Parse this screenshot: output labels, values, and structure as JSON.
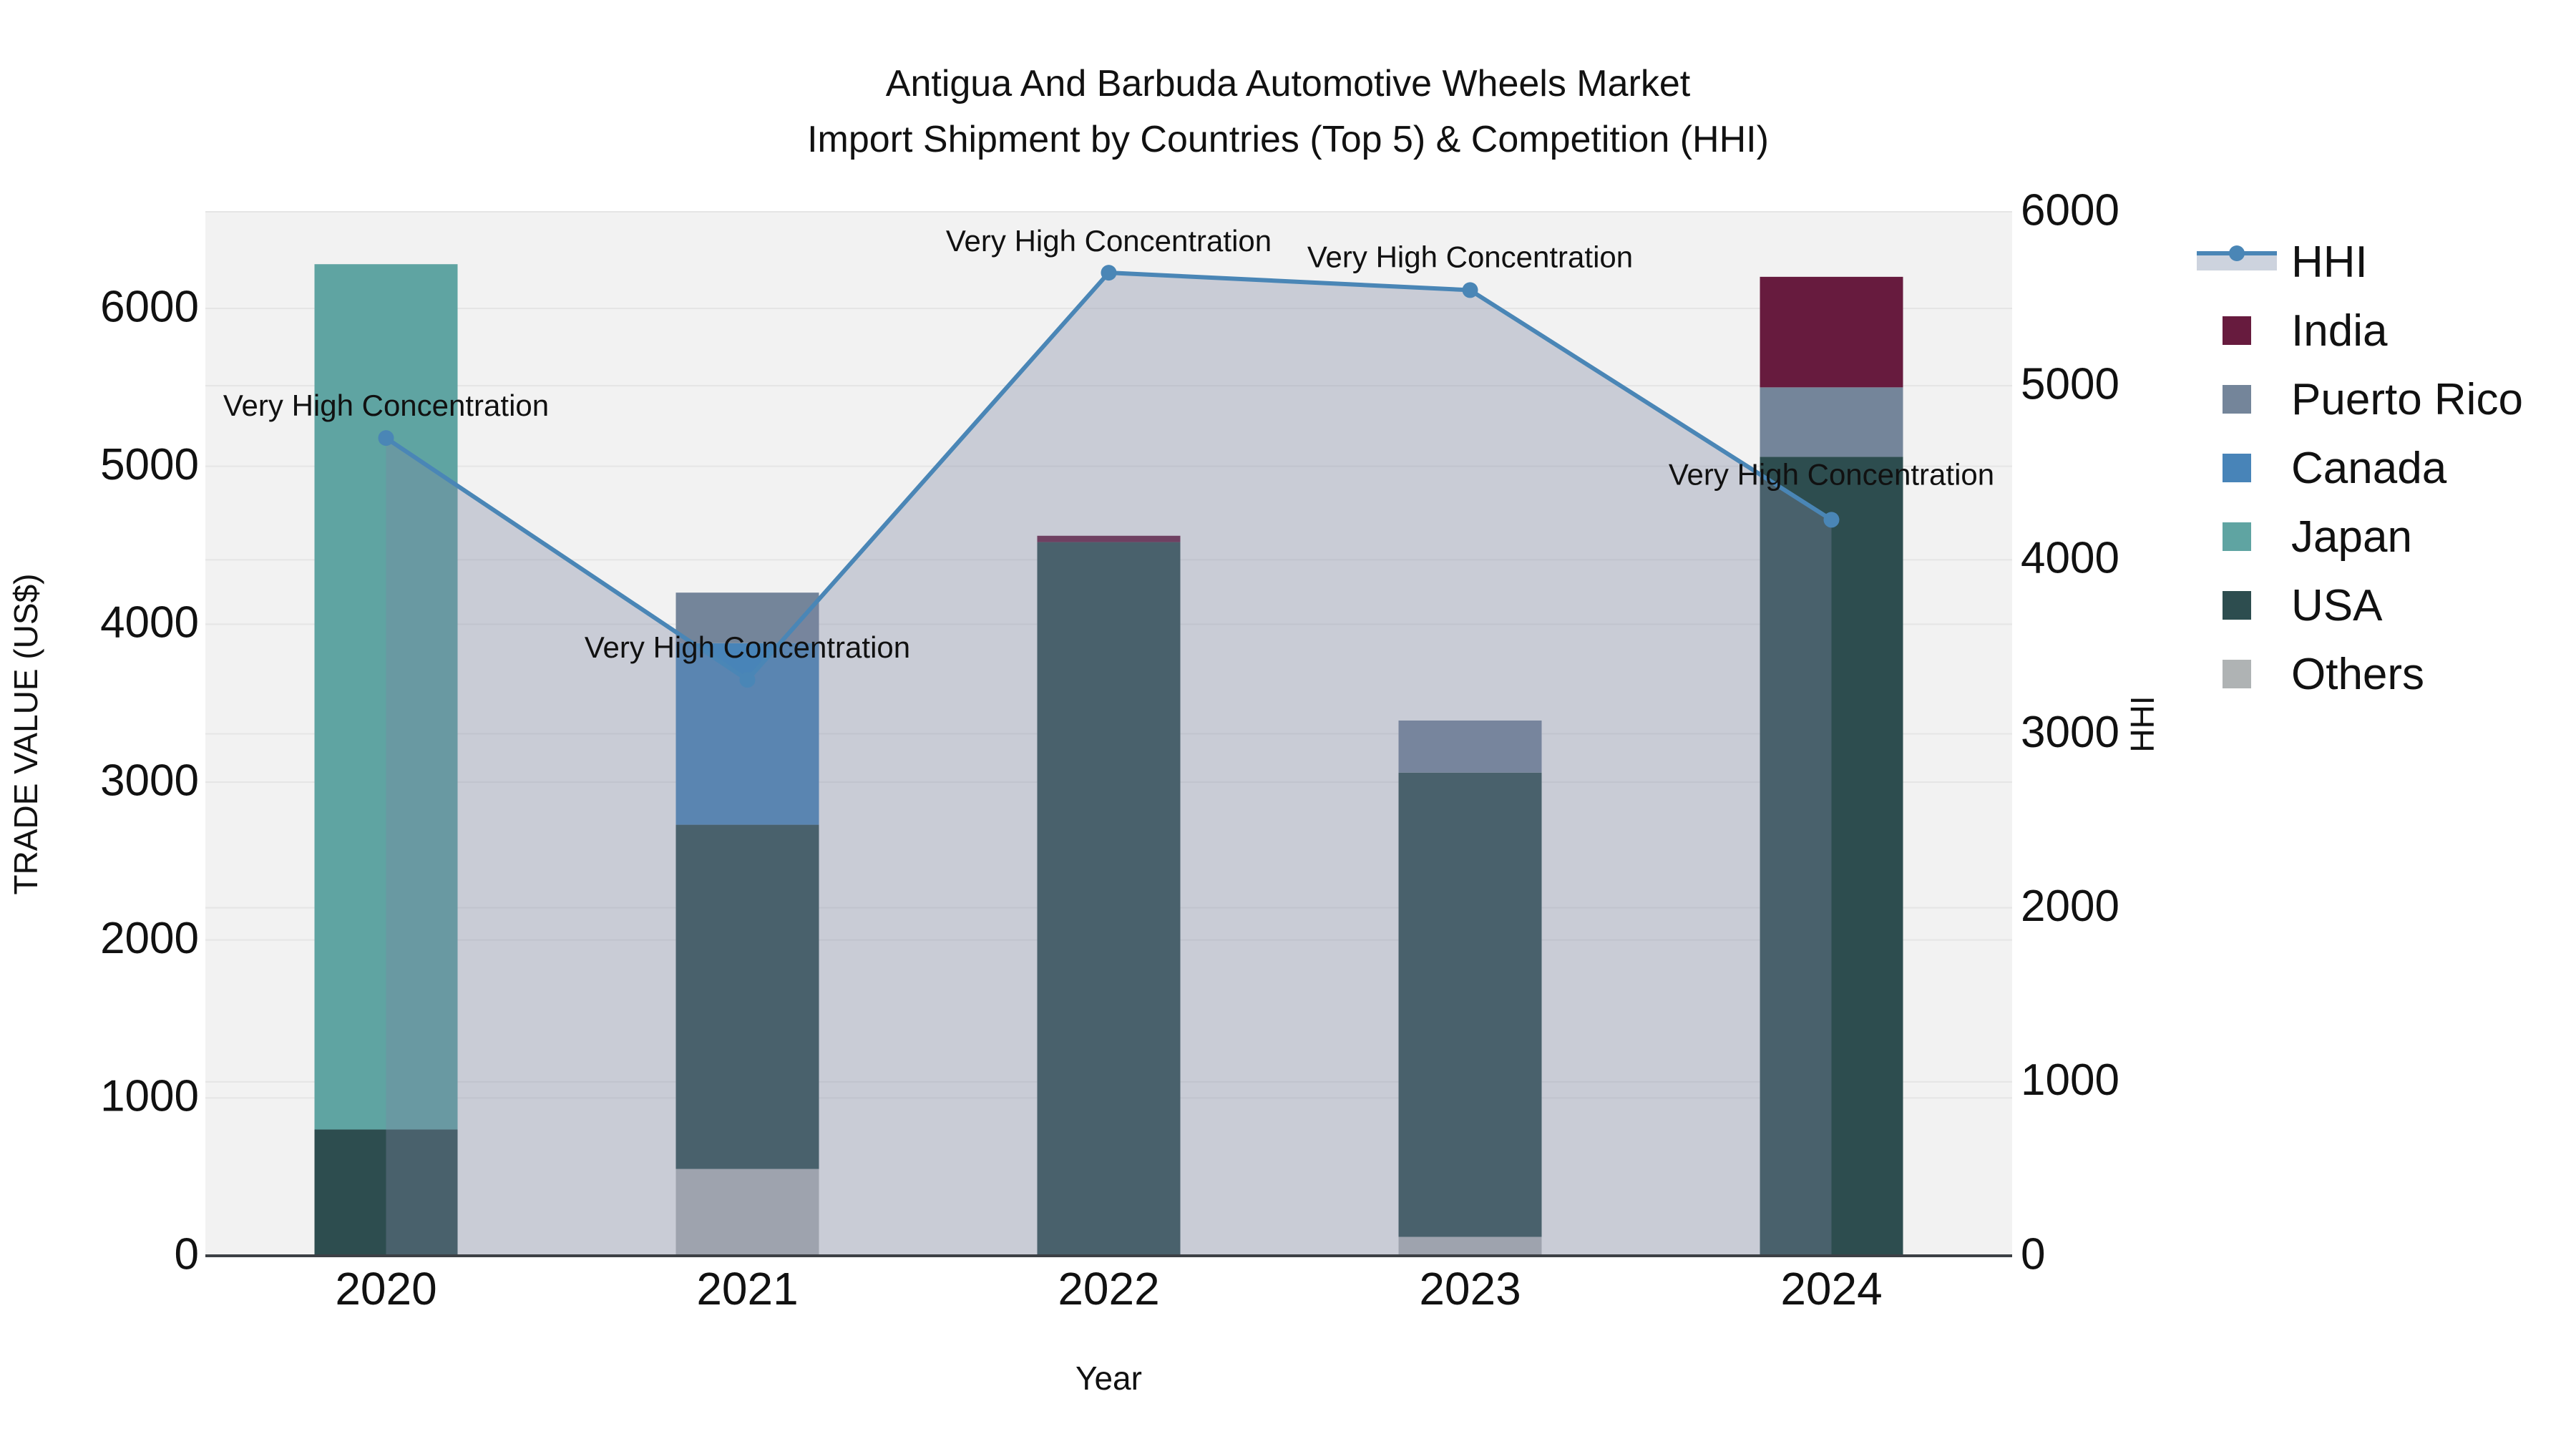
{
  "title": {
    "line1": "Antigua And Barbuda Automotive Wheels Market",
    "line2": "Import Shipment by Countries (Top 5) & Competition (HHI)"
  },
  "chart_data": {
    "type": "bar+line",
    "categories": [
      "2020",
      "2021",
      "2022",
      "2023",
      "2024"
    ],
    "xlabel": "Year",
    "ylabel_left": "TRADE VALUE (US$)",
    "ylabel_right": "HHI",
    "yticks_left": [
      "0",
      "1000",
      "2000",
      "3000",
      "4000",
      "5000",
      "6000"
    ],
    "yticks_right": [
      "0",
      "1000",
      "2000",
      "3000",
      "4000",
      "5000",
      "6000"
    ],
    "ylim_left": [
      0,
      6614
    ],
    "ylim_right": [
      0,
      6000
    ],
    "grid": "on",
    "legend_position": "right",
    "stack_order_bottom_to_top": [
      "Others",
      "USA",
      "Japan",
      "Canada",
      "Puerto Rico",
      "India"
    ],
    "series": [
      {
        "name": "India",
        "color": "#671B3E",
        "values": [
          0,
          0,
          40,
          0,
          700
        ]
      },
      {
        "name": "Puerto Rico",
        "color": "#74859A",
        "values": [
          0,
          320,
          0,
          330,
          440
        ]
      },
      {
        "name": "Canada",
        "color": "#4884B8",
        "values": [
          0,
          1150,
          0,
          0,
          0
        ]
      },
      {
        "name": "Japan",
        "color": "#5FA4A2",
        "values": [
          5480,
          0,
          0,
          0,
          0
        ]
      },
      {
        "name": "USA",
        "color": "#2D4D4F",
        "values": [
          800,
          2180,
          4520,
          2940,
          5060
        ]
      },
      {
        "name": "Others",
        "color": "#AFB3B4",
        "values": [
          0,
          550,
          0,
          120,
          0
        ]
      }
    ],
    "bar_totals": [
      6280,
      4200,
      4560,
      3390,
      6200
    ],
    "hhi": {
      "name": "HHI",
      "line_color": "#4A86B6",
      "area_fill": "rgba(125,136,162,0.35)",
      "values": [
        4700,
        3310,
        5650,
        5550,
        4230
      ]
    },
    "annotation_text": "Very High Concentration",
    "legend_order": [
      "HHI",
      "India",
      "Puerto Rico",
      "Canada",
      "Japan",
      "USA",
      "Others"
    ]
  },
  "colors": {
    "plot_bg": "#F2F2F2",
    "gridline": "#E5E5E5",
    "axis_line": "#3C4045",
    "text": "#111111",
    "hhi_legend_band": "#CDD3DE"
  }
}
